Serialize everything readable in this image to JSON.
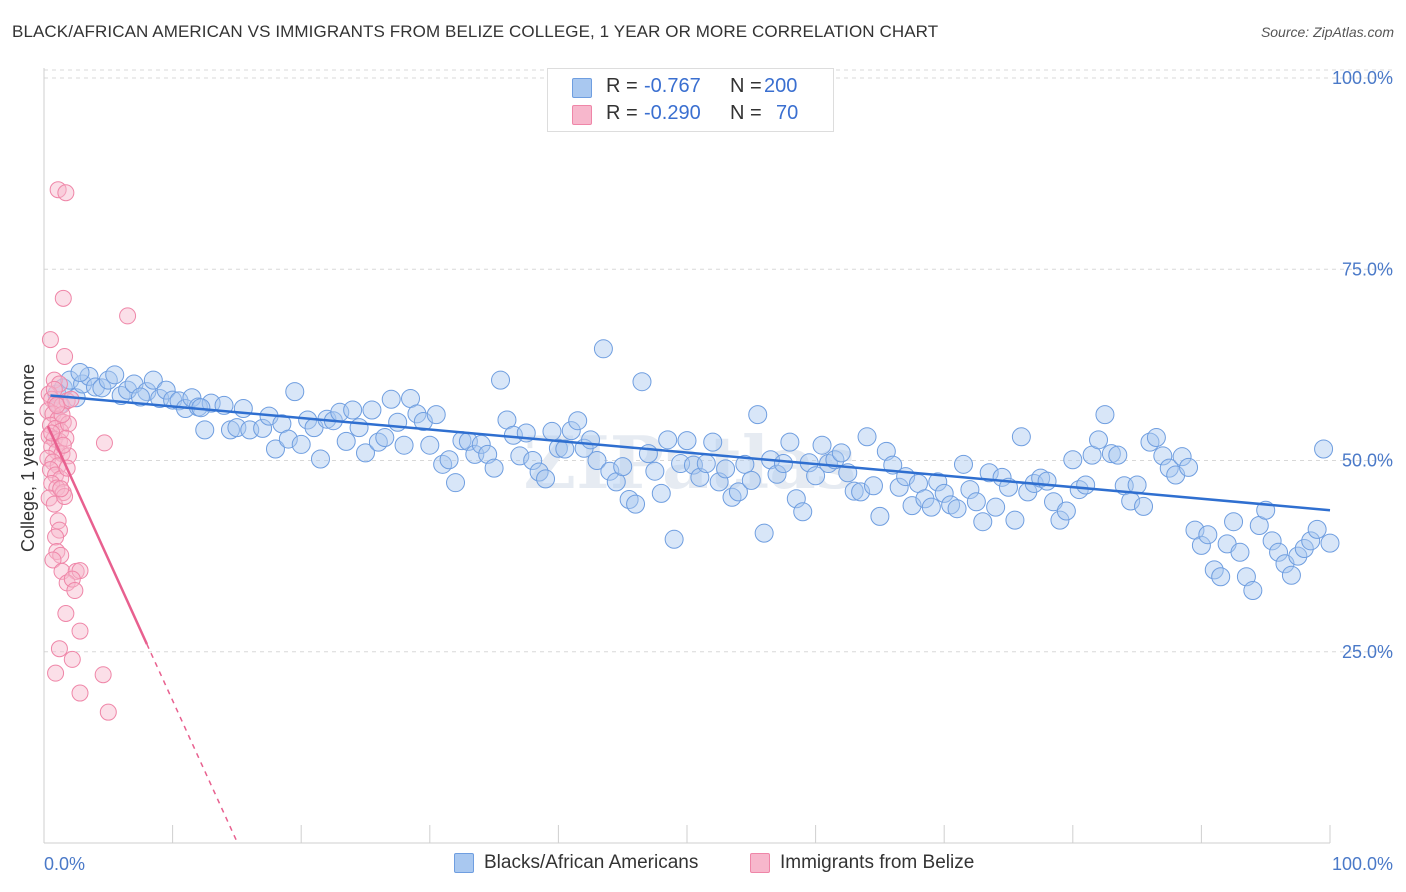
{
  "header": {
    "title": "BLACK/AFRICAN AMERICAN VS IMMIGRANTS FROM BELIZE COLLEGE, 1 YEAR OR MORE CORRELATION CHART",
    "source": "Source: ZipAtlas.com"
  },
  "stats": {
    "row1": {
      "r_label": "R =",
      "r_value": "-0.767",
      "n_label": "N =",
      "n_value": "200"
    },
    "row2": {
      "r_label": "R =",
      "r_value": "-0.290",
      "n_label": "N =",
      "n_value": "70"
    }
  },
  "legend": {
    "series1": "Blacks/African Americans",
    "series2": "Immigrants from Belize"
  },
  "colors": {
    "blue_fill": "#a9c8f0",
    "blue_stroke": "#6f9ee0",
    "blue_line": "#2f6fd0",
    "pink_fill": "#f7b7cc",
    "pink_stroke": "#ef86a8",
    "pink_line": "#e8608f",
    "tick_text": "#4a79c8",
    "grid": "#d8d8d8"
  },
  "chart_data": {
    "type": "scatter",
    "title": "BLACK/AFRICAN AMERICAN VS IMMIGRANTS FROM BELIZE COLLEGE, 1 YEAR OR MORE CORRELATION CHART",
    "xlabel": "",
    "ylabel": "College, 1 year or more",
    "xlim": [
      0,
      100
    ],
    "ylim": [
      0,
      100
    ],
    "x_ticks": [
      "0.0%",
      "100.0%"
    ],
    "y_ticks": [
      "25.0%",
      "50.0%",
      "75.0%",
      "100.0%"
    ],
    "y_tick_values": [
      25,
      50,
      75,
      100
    ],
    "grid": true,
    "legend_position": "bottom",
    "watermark": "ZIPatlas",
    "series": [
      {
        "name": "Blacks/African Americans",
        "color": "#a9c8f0",
        "trend": {
          "x0": 0.5,
          "y0": 58.5,
          "x1": 100,
          "y1": 43.5
        },
        "points": [
          [
            1,
            58.7
          ],
          [
            1.5,
            59.5
          ],
          [
            2,
            60.5
          ],
          [
            2.5,
            58.2
          ],
          [
            3,
            60.0
          ],
          [
            3.5,
            61.0
          ],
          [
            4,
            59.6
          ],
          [
            4.5,
            59.5
          ],
          [
            5,
            60.5
          ],
          [
            5.5,
            61.2
          ],
          [
            6,
            58.5
          ],
          [
            6.5,
            59.2
          ],
          [
            7,
            60.0
          ],
          [
            8,
            59.0
          ],
          [
            8.5,
            60.5
          ],
          [
            9,
            58.1
          ],
          [
            9.5,
            59.2
          ],
          [
            10,
            57.9
          ],
          [
            10.5,
            57.8
          ],
          [
            11,
            56.8
          ],
          [
            11.5,
            58.2
          ],
          [
            12,
            57.0
          ],
          [
            12.5,
            54.0
          ],
          [
            13,
            57.5
          ],
          [
            14,
            57.2
          ],
          [
            14.5,
            54.0
          ],
          [
            15,
            54.3
          ],
          [
            15.5,
            56.8
          ],
          [
            16,
            54.0
          ],
          [
            17,
            54.2
          ],
          [
            17.5,
            55.8
          ],
          [
            18,
            51.5
          ],
          [
            18.5,
            54.8
          ],
          [
            19,
            52.8
          ],
          [
            19.5,
            59.0
          ],
          [
            20,
            52.1
          ],
          [
            20.5,
            55.3
          ],
          [
            21,
            54.3
          ],
          [
            21.5,
            50.2
          ],
          [
            22,
            55.4
          ],
          [
            22.5,
            55.2
          ],
          [
            23,
            56.3
          ],
          [
            23.5,
            52.5
          ],
          [
            24,
            56.6
          ],
          [
            24.5,
            54.3
          ],
          [
            25,
            51.0
          ],
          [
            25.5,
            56.6
          ],
          [
            26,
            52.4
          ],
          [
            26.5,
            53.0
          ],
          [
            27,
            58.0
          ],
          [
            27.5,
            55.0
          ],
          [
            28,
            52.0
          ],
          [
            28.5,
            58.1
          ],
          [
            29,
            56.1
          ],
          [
            29.5,
            55.1
          ],
          [
            30,
            52.0
          ],
          [
            30.5,
            56.0
          ],
          [
            31,
            49.5
          ],
          [
            31.5,
            50.1
          ],
          [
            32,
            47.1
          ],
          [
            32.5,
            52.6
          ],
          [
            33,
            52.5
          ],
          [
            33.5,
            50.8
          ],
          [
            34,
            52.1
          ],
          [
            34.5,
            50.8
          ],
          [
            35,
            49.0
          ],
          [
            35.5,
            60.5
          ],
          [
            36,
            55.3
          ],
          [
            36.5,
            53.3
          ],
          [
            37,
            50.6
          ],
          [
            37.5,
            53.6
          ],
          [
            38,
            50.0
          ],
          [
            38.5,
            48.5
          ],
          [
            39,
            47.6
          ],
          [
            39.5,
            53.8
          ],
          [
            40,
            51.6
          ],
          [
            40.5,
            51.5
          ],
          [
            41,
            53.9
          ],
          [
            41.5,
            55.2
          ],
          [
            42,
            51.6
          ],
          [
            42.5,
            52.7
          ],
          [
            43,
            50.0
          ],
          [
            43.5,
            64.6
          ],
          [
            44,
            48.6
          ],
          [
            44.5,
            47.2
          ],
          [
            45,
            49.2
          ],
          [
            45.5,
            44.9
          ],
          [
            46,
            44.3
          ],
          [
            46.5,
            60.3
          ],
          [
            47,
            50.9
          ],
          [
            47.5,
            48.6
          ],
          [
            48,
            45.7
          ],
          [
            48.5,
            52.7
          ],
          [
            49,
            39.7
          ],
          [
            49.5,
            49.6
          ],
          [
            50,
            52.6
          ],
          [
            50.5,
            49.4
          ],
          [
            51,
            47.8
          ],
          [
            51.5,
            49.6
          ],
          [
            52,
            52.4
          ],
          [
            52.5,
            47.2
          ],
          [
            53,
            48.9
          ],
          [
            53.5,
            45.2
          ],
          [
            54,
            45.9
          ],
          [
            54.5,
            49.5
          ],
          [
            55,
            47.4
          ],
          [
            55.5,
            56.0
          ],
          [
            56,
            40.5
          ],
          [
            56.5,
            50.1
          ],
          [
            57,
            48.2
          ],
          [
            57.5,
            49.6
          ],
          [
            58,
            52.4
          ],
          [
            58.5,
            45.0
          ],
          [
            59,
            43.3
          ],
          [
            59.5,
            49.7
          ],
          [
            60,
            48.0
          ],
          [
            60.5,
            52.0
          ],
          [
            61,
            49.6
          ],
          [
            61.5,
            50.1
          ],
          [
            62,
            51.0
          ],
          [
            62.5,
            48.4
          ],
          [
            63,
            46.0
          ],
          [
            63.5,
            45.9
          ],
          [
            64,
            53.1
          ],
          [
            64.5,
            46.7
          ],
          [
            65,
            42.7
          ],
          [
            65.5,
            51.2
          ],
          [
            66,
            49.4
          ],
          [
            66.5,
            46.5
          ],
          [
            67,
            47.9
          ],
          [
            67.5,
            44.1
          ],
          [
            68,
            47.0
          ],
          [
            68.5,
            45.0
          ],
          [
            69,
            43.9
          ],
          [
            69.5,
            47.2
          ],
          [
            70,
            45.7
          ],
          [
            70.5,
            44.2
          ],
          [
            71,
            43.7
          ],
          [
            71.5,
            49.5
          ],
          [
            72,
            46.2
          ],
          [
            72.5,
            44.6
          ],
          [
            73,
            42.0
          ],
          [
            73.5,
            48.4
          ],
          [
            74,
            43.9
          ],
          [
            74.5,
            47.8
          ],
          [
            75,
            46.5
          ],
          [
            75.5,
            42.2
          ],
          [
            76,
            53.1
          ],
          [
            76.5,
            45.9
          ],
          [
            77,
            47.0
          ],
          [
            77.5,
            47.7
          ],
          [
            78,
            47.3
          ],
          [
            78.5,
            44.6
          ],
          [
            79,
            42.2
          ],
          [
            79.5,
            43.4
          ],
          [
            80,
            50.1
          ],
          [
            80.5,
            46.2
          ],
          [
            81,
            46.8
          ],
          [
            81.5,
            50.7
          ],
          [
            82,
            52.7
          ],
          [
            82.5,
            56.0
          ],
          [
            83,
            50.9
          ],
          [
            83.5,
            50.7
          ],
          [
            84,
            46.7
          ],
          [
            84.5,
            44.7
          ],
          [
            85,
            46.8
          ],
          [
            85.5,
            44.0
          ],
          [
            86,
            52.4
          ],
          [
            86.5,
            53.0
          ],
          [
            87,
            50.6
          ],
          [
            87.5,
            49.0
          ],
          [
            88,
            48.1
          ],
          [
            88.5,
            50.5
          ],
          [
            89,
            49.1
          ],
          [
            89.5,
            40.9
          ],
          [
            90,
            38.9
          ],
          [
            90.5,
            40.3
          ],
          [
            91,
            35.7
          ],
          [
            91.5,
            34.8
          ],
          [
            92,
            39.1
          ],
          [
            92.5,
            42.0
          ],
          [
            93,
            38.0
          ],
          [
            93.5,
            34.8
          ],
          [
            94,
            33.0
          ],
          [
            94.5,
            41.5
          ],
          [
            95,
            43.5
          ],
          [
            95.5,
            39.5
          ],
          [
            96,
            38.0
          ],
          [
            96.5,
            36.5
          ],
          [
            97,
            35.0
          ],
          [
            97.5,
            37.5
          ],
          [
            98,
            38.5
          ],
          [
            98.5,
            39.5
          ],
          [
            99,
            41.0
          ],
          [
            99.5,
            51.5
          ],
          [
            100,
            39.2
          ],
          [
            1.2,
            57.2
          ],
          [
            2.8,
            61.5
          ],
          [
            7.5,
            58.3
          ],
          [
            12.2,
            56.9
          ]
        ]
      },
      {
        "name": "Immigrants from Belize",
        "color": "#f7b7cc",
        "trend": {
          "x0": 0.3,
          "y0": 54.5,
          "x1": 8.0,
          "y1": 26.0,
          "dash_to_x": 16.0,
          "dash_to_y": -3.5
        },
        "points": [
          [
            1.1,
            85.4
          ],
          [
            1.7,
            85.0
          ],
          [
            1.5,
            71.2
          ],
          [
            0.5,
            65.8
          ],
          [
            1.6,
            63.6
          ],
          [
            6.5,
            68.9
          ],
          [
            0.8,
            60.5
          ],
          [
            1.2,
            60.0
          ],
          [
            0.4,
            58.7
          ],
          [
            0.6,
            58.0
          ],
          [
            0.9,
            57.5
          ],
          [
            1.4,
            57.2
          ],
          [
            1.8,
            57.8
          ],
          [
            0.3,
            56.5
          ],
          [
            0.7,
            56.1
          ],
          [
            1.1,
            55.4
          ],
          [
            1.5,
            55.0
          ],
          [
            0.5,
            54.6
          ],
          [
            0.9,
            54.2
          ],
          [
            1.3,
            53.8
          ],
          [
            1.9,
            54.8
          ],
          [
            0.4,
            53.2
          ],
          [
            0.8,
            52.8
          ],
          [
            1.2,
            52.5
          ],
          [
            1.7,
            52.9
          ],
          [
            0.6,
            51.8
          ],
          [
            1.0,
            51.2
          ],
          [
            1.4,
            50.9
          ],
          [
            0.3,
            50.3
          ],
          [
            0.7,
            49.8
          ],
          [
            1.1,
            49.3
          ],
          [
            0.5,
            48.8
          ],
          [
            0.9,
            48.1
          ],
          [
            1.3,
            47.6
          ],
          [
            0.6,
            47.0
          ],
          [
            1.0,
            46.4
          ],
          [
            1.5,
            45.8
          ],
          [
            0.4,
            45.1
          ],
          [
            0.8,
            44.3
          ],
          [
            1.6,
            45.3
          ],
          [
            1.1,
            42.1
          ],
          [
            1.2,
            40.9
          ],
          [
            0.9,
            40.0
          ],
          [
            1.0,
            38.1
          ],
          [
            1.3,
            37.6
          ],
          [
            0.7,
            37.0
          ],
          [
            1.4,
            35.5
          ],
          [
            2.5,
            35.5
          ],
          [
            2.8,
            35.6
          ],
          [
            1.8,
            34.0
          ],
          [
            2.2,
            34.5
          ],
          [
            2.4,
            33.0
          ],
          [
            1.7,
            30.0
          ],
          [
            2.8,
            27.7
          ],
          [
            1.2,
            25.4
          ],
          [
            2.2,
            24.0
          ],
          [
            0.9,
            22.2
          ],
          [
            4.6,
            22.0
          ],
          [
            2.8,
            19.6
          ],
          [
            5.0,
            17.1
          ],
          [
            4.7,
            52.3
          ],
          [
            1.4,
            56.0
          ],
          [
            0.6,
            53.6
          ],
          [
            1.9,
            50.6
          ],
          [
            1.0,
            57.2
          ],
          [
            2.1,
            58.0
          ],
          [
            1.5,
            52.0
          ],
          [
            0.8,
            59.3
          ],
          [
            1.3,
            46.3
          ],
          [
            1.8,
            49.0
          ]
        ]
      }
    ]
  }
}
